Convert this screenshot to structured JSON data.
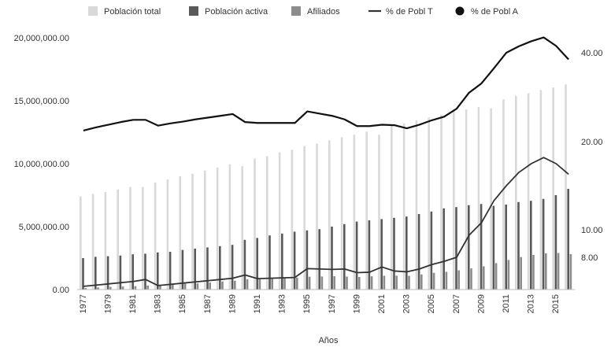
{
  "chart_data": {
    "type": "bar",
    "xlabel": "Años",
    "categories": [
      1977,
      1978,
      1979,
      1980,
      1981,
      1982,
      1983,
      1984,
      1985,
      1986,
      1987,
      1988,
      1989,
      1990,
      1991,
      1992,
      1993,
      1994,
      1995,
      1996,
      1997,
      1998,
      1999,
      2000,
      2001,
      2002,
      2003,
      2004,
      2005,
      2006,
      2007,
      2008,
      2009,
      2010,
      2011,
      2012,
      2013,
      2014,
      2015,
      2016
    ],
    "x_tick_labels": [
      "1977",
      "1979",
      "1981",
      "1983",
      "1985",
      "1987",
      "1989",
      "1991",
      "1993",
      "1995",
      "1997",
      "1999",
      "2001",
      "2003",
      "2005",
      "2007",
      "2009",
      "2011",
      "2013",
      "2015"
    ],
    "y_left": {
      "range": [
        0,
        20000000
      ],
      "tick_labels": [
        "0.00",
        "5,000,000.00",
        "10,000,000.00",
        "15,000,000.00",
        "20,000,000.00"
      ],
      "tick_values": [
        0,
        5000000,
        10000000,
        15000000,
        20000000
      ]
    },
    "y_right": {
      "tick_labels": [
        "8.00",
        "10.00",
        "20.00",
        "40.00"
      ],
      "tick_values": [
        8,
        10,
        20,
        40
      ]
    },
    "series": [
      {
        "name": "Población total",
        "kind": "bar",
        "axis": "left",
        "color": "#d9d9d9",
        "values": [
          7400000,
          7600000,
          7750000,
          7950000,
          8150000,
          8150000,
          8500000,
          8750000,
          9000000,
          9200000,
          9450000,
          9700000,
          9950000,
          9800000,
          10400000,
          10600000,
          10900000,
          11100000,
          11400000,
          11600000,
          11850000,
          12100000,
          12300000,
          12550000,
          12300000,
          13000000,
          13200000,
          13450000,
          13650000,
          13900000,
          14150000,
          14300000,
          14500000,
          14400000,
          15100000,
          15400000,
          15600000,
          15850000,
          16050000,
          16300000
        ]
      },
      {
        "name": "Población activa",
        "kind": "bar",
        "axis": "left",
        "color": "#595959",
        "values": [
          2500000,
          2600000,
          2650000,
          2700000,
          2800000,
          2850000,
          2950000,
          3000000,
          3150000,
          3250000,
          3350000,
          3450000,
          3550000,
          3950000,
          4100000,
          4300000,
          4450000,
          4600000,
          4700000,
          4800000,
          5000000,
          5200000,
          5400000,
          5500000,
          5600000,
          5700000,
          5800000,
          6000000,
          6200000,
          6450000,
          6550000,
          6700000,
          6800000,
          6650000,
          6750000,
          6950000,
          7050000,
          7200000,
          7500000,
          8000000
        ]
      },
      {
        "name": "Afiliados",
        "kind": "bar",
        "axis": "left",
        "color": "#8c8c8c",
        "values": [
          120000,
          170000,
          210000,
          240000,
          270000,
          320000,
          380000,
          430000,
          460000,
          490000,
          560000,
          640000,
          700000,
          820000,
          860000,
          880000,
          920000,
          950000,
          1020000,
          1040000,
          1060000,
          1030000,
          1000000,
          1050000,
          1100000,
          1100000,
          1090000,
          1200000,
          1330000,
          1410000,
          1530000,
          1680000,
          1850000,
          2100000,
          2350000,
          2580000,
          2750000,
          2880000,
          2900000,
          2820000
        ]
      },
      {
        "name": "% de Pobl T",
        "kind": "line",
        "axis": "right",
        "color": "#333333",
        "values": [
          0.8,
          1.1,
          1.4,
          1.7,
          2.0,
          2.5,
          1.0,
          1.3,
          1.6,
          1.9,
          2.2,
          2.5,
          2.8,
          3.6,
          2.7,
          2.8,
          2.9,
          3.0,
          5.2,
          5.1,
          5.0,
          5.1,
          4.2,
          4.3,
          5.6,
          4.6,
          4.4,
          5.1,
          6.2,
          7.0,
          8.0,
          9.6,
          10.8,
          13.3,
          15.0,
          16.5,
          17.5,
          18.2,
          17.5,
          16.3
        ]
      },
      {
        "name": "% de Pobl A",
        "kind": "line",
        "axis": "right",
        "color": "#111111",
        "values": [
          22.5,
          23.2,
          23.8,
          24.4,
          24.9,
          24.9,
          23.6,
          24.1,
          24.5,
          25.0,
          25.4,
          25.8,
          26.2,
          24.4,
          24.2,
          24.2,
          24.2,
          24.2,
          26.8,
          26.3,
          25.8,
          25.0,
          23.5,
          23.5,
          23.8,
          23.7,
          23.0,
          23.8,
          24.8,
          25.6,
          27.4,
          31.0,
          33.1,
          36.5,
          40.0,
          41.5,
          42.7,
          43.6,
          41.6,
          38.5
        ]
      }
    ],
    "legend": {
      "position": "top",
      "items": [
        {
          "label": "Población total",
          "marker": "square",
          "color": "#d9d9d9"
        },
        {
          "label": "Población activa",
          "marker": "square",
          "color": "#595959"
        },
        {
          "label": "Afiliados",
          "marker": "square",
          "color": "#8c8c8c"
        },
        {
          "label": "% de Pobl T",
          "marker": "line",
          "color": "#333333"
        },
        {
          "label": "% de Pobl A",
          "marker": "circle",
          "color": "#111111"
        }
      ]
    },
    "grid": false
  }
}
